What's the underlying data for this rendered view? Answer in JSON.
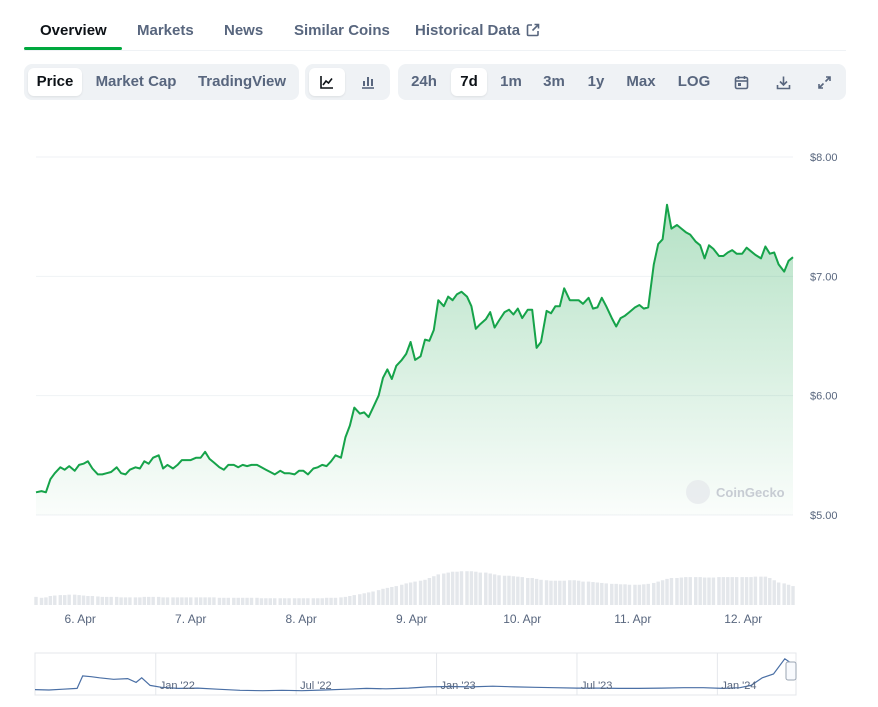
{
  "tabs": [
    {
      "label": "Overview",
      "active": true
    },
    {
      "label": "Markets"
    },
    {
      "label": "News"
    },
    {
      "label": "Similar Coins"
    },
    {
      "label": "Historical Data"
    }
  ],
  "toolbar": {
    "metric_buttons": [
      {
        "label": "Price",
        "active": true
      },
      {
        "label": "Market Cap"
      },
      {
        "label": "TradingView"
      }
    ],
    "chart_type_icons": [
      "line-chart-icon",
      "candlestick-chart-icon"
    ],
    "range_buttons": [
      {
        "label": "24h"
      },
      {
        "label": "7d",
        "active": true
      },
      {
        "label": "1m"
      },
      {
        "label": "3m"
      },
      {
        "label": "1y"
      },
      {
        "label": "Max"
      },
      {
        "label": "LOG"
      }
    ],
    "action_icons": [
      "calendar-icon",
      "download-icon",
      "fullscreen-icon"
    ]
  },
  "watermark": "CoinGecko",
  "colors": {
    "line": "#16a34a",
    "fill_top": "#b9e8c6",
    "volume": "#e4e7eb",
    "navigator_line": "#4a6fa5"
  },
  "chart_data": {
    "type": "line",
    "ylim": [
      5.0,
      8.0
    ],
    "yticks": [
      "$8.00",
      "$7.00",
      "$6.00",
      "$5.00"
    ],
    "ytick_values": [
      8,
      7,
      6,
      5
    ],
    "xlim": [
      5.6,
      12.45
    ],
    "xticks": [
      "6. Apr",
      "7. Apr",
      "8. Apr",
      "9. Apr",
      "10. Apr",
      "11. Apr",
      "12. Apr"
    ],
    "xtick_values": [
      6,
      7,
      8,
      9,
      10,
      11,
      12
    ],
    "x": [
      5.6,
      5.65,
      5.69,
      5.73,
      5.77,
      5.82,
      5.86,
      5.9,
      5.95,
      5.99,
      6.03,
      6.07,
      6.11,
      6.16,
      6.2,
      6.24,
      6.28,
      6.33,
      6.37,
      6.41,
      6.45,
      6.5,
      6.54,
      6.58,
      6.62,
      6.66,
      6.71,
      6.75,
      6.79,
      6.84,
      6.88,
      6.92,
      6.96,
      7.0,
      7.05,
      7.09,
      7.13,
      7.17,
      7.21,
      7.26,
      7.3,
      7.34,
      7.39,
      7.43,
      7.47,
      7.51,
      7.55,
      7.6,
      7.64,
      7.68,
      7.72,
      7.76,
      7.81,
      7.85,
      7.89,
      7.94,
      7.98,
      8.02,
      8.06,
      8.11,
      8.15,
      8.19,
      8.23,
      8.27,
      8.31,
      8.36,
      8.4,
      8.44,
      8.48,
      8.53,
      8.57,
      8.61,
      8.65,
      8.7,
      8.74,
      8.78,
      8.82,
      8.86,
      8.91,
      8.95,
      8.99,
      9.03,
      9.08,
      9.12,
      9.16,
      9.2,
      9.24,
      9.29,
      9.33,
      9.37,
      9.41,
      9.45,
      9.5,
      9.54,
      9.58,
      9.62,
      9.67,
      9.71,
      9.75,
      9.79,
      9.84,
      9.88,
      9.92,
      9.96,
      10.0,
      10.05,
      10.09,
      10.13,
      10.17,
      10.22,
      10.26,
      10.3,
      10.34,
      10.38,
      10.43,
      10.47,
      10.51,
      10.55,
      10.6,
      10.64,
      10.68,
      10.72,
      10.76,
      10.81,
      10.85,
      10.89,
      10.93,
      10.97,
      11.02,
      11.06,
      11.1,
      11.14,
      11.19,
      11.23,
      11.27,
      11.31,
      11.35,
      11.4,
      11.44,
      11.48,
      11.52,
      11.57,
      11.61,
      11.65,
      11.69,
      11.73,
      11.78,
      11.82,
      11.86,
      11.9,
      11.94,
      11.99,
      12.03,
      12.07,
      12.11,
      12.16,
      12.2,
      12.24,
      12.28,
      12.32,
      12.37,
      12.41,
      12.45
    ],
    "y": [
      5.19,
      5.2,
      5.19,
      5.3,
      5.35,
      5.4,
      5.38,
      5.41,
      5.37,
      5.42,
      5.43,
      5.45,
      5.39,
      5.34,
      5.34,
      5.35,
      5.36,
      5.4,
      5.35,
      5.34,
      5.38,
      5.4,
      5.39,
      5.45,
      5.43,
      5.48,
      5.5,
      5.39,
      5.42,
      5.39,
      5.42,
      5.46,
      5.46,
      5.46,
      5.48,
      5.48,
      5.53,
      5.47,
      5.44,
      5.4,
      5.38,
      5.42,
      5.42,
      5.4,
      5.42,
      5.41,
      5.42,
      5.42,
      5.4,
      5.38,
      5.36,
      5.34,
      5.37,
      5.35,
      5.35,
      5.34,
      5.37,
      5.37,
      5.34,
      5.39,
      5.4,
      5.42,
      5.41,
      5.45,
      5.5,
      5.48,
      5.65,
      5.75,
      5.9,
      5.85,
      5.86,
      5.82,
      5.9,
      6.0,
      6.15,
      6.22,
      6.14,
      6.25,
      6.3,
      6.35,
      6.45,
      6.3,
      6.33,
      6.47,
      6.46,
      6.55,
      6.8,
      6.75,
      6.83,
      6.8,
      6.85,
      6.87,
      6.83,
      6.75,
      6.56,
      6.6,
      6.64,
      6.7,
      6.57,
      6.63,
      6.7,
      6.72,
      6.68,
      6.73,
      6.65,
      6.72,
      6.72,
      6.4,
      6.45,
      6.71,
      6.69,
      6.75,
      6.75,
      6.9,
      6.8,
      6.8,
      6.8,
      6.77,
      6.82,
      6.73,
      6.74,
      6.82,
      6.75,
      6.65,
      6.58,
      6.65,
      6.67,
      6.7,
      6.74,
      6.76,
      6.73,
      6.74,
      7.1,
      7.27,
      7.31,
      7.6,
      7.4,
      7.43,
      7.4,
      7.37,
      7.35,
      7.29,
      7.26,
      7.15,
      7.26,
      7.23,
      7.17,
      7.17,
      7.2,
      7.22,
      7.19,
      7.19,
      7.24,
      7.21,
      7.18,
      7.15,
      7.25,
      7.19,
      7.2,
      7.1,
      7.04,
      7.13,
      7.16
    ],
    "volume_x": [
      5.6,
      5.65,
      5.69,
      5.73,
      5.77,
      5.82,
      5.86,
      5.9,
      5.95,
      5.99,
      6.03,
      6.07,
      6.11,
      6.16,
      6.2,
      6.24,
      6.28,
      6.33,
      6.37,
      6.41,
      6.45,
      6.5,
      6.54,
      6.58,
      6.62,
      6.66,
      6.71,
      6.75,
      6.79,
      6.84,
      6.88,
      6.92,
      6.96,
      7.0,
      7.05,
      7.09,
      7.13,
      7.17,
      7.21,
      7.26,
      7.3,
      7.34,
      7.39,
      7.43,
      7.47,
      7.51,
      7.55,
      7.6,
      7.64,
      7.68,
      7.72,
      7.76,
      7.81,
      7.85,
      7.89,
      7.94,
      7.98,
      8.02,
      8.06,
      8.11,
      8.15,
      8.19,
      8.23,
      8.27,
      8.31,
      8.36,
      8.4,
      8.44,
      8.48,
      8.53,
      8.57,
      8.61,
      8.65,
      8.7,
      8.74,
      8.78,
      8.82,
      8.86,
      8.91,
      8.95,
      8.99,
      9.03,
      9.08,
      9.12,
      9.16,
      9.2,
      9.24,
      9.29,
      9.33,
      9.37,
      9.41,
      9.45,
      9.5,
      9.54,
      9.58,
      9.62,
      9.67,
      9.71,
      9.75,
      9.79,
      9.84,
      9.88,
      9.92,
      9.96,
      10.0,
      10.05,
      10.09,
      10.13,
      10.17,
      10.22,
      10.26,
      10.3,
      10.34,
      10.38,
      10.43,
      10.47,
      10.51,
      10.55,
      10.6,
      10.64,
      10.68,
      10.72,
      10.76,
      10.81,
      10.85,
      10.89,
      10.93,
      10.97,
      11.02,
      11.06,
      11.1,
      11.14,
      11.19,
      11.23,
      11.27,
      11.31,
      11.35,
      11.4,
      11.44,
      11.48,
      11.52,
      11.57,
      11.61,
      11.65,
      11.69,
      11.73,
      11.78,
      11.82,
      11.86,
      11.9,
      11.94,
      11.99,
      12.03,
      12.07,
      12.11,
      12.16,
      12.2,
      12.24,
      12.28,
      12.32,
      12.37,
      12.41,
      12.45
    ],
    "volume": [
      0.18,
      0.16,
      0.17,
      0.2,
      0.21,
      0.22,
      0.22,
      0.23,
      0.23,
      0.22,
      0.21,
      0.2,
      0.2,
      0.19,
      0.18,
      0.18,
      0.18,
      0.18,
      0.17,
      0.17,
      0.17,
      0.17,
      0.17,
      0.18,
      0.18,
      0.18,
      0.18,
      0.17,
      0.17,
      0.17,
      0.17,
      0.17,
      0.17,
      0.17,
      0.17,
      0.17,
      0.17,
      0.17,
      0.17,
      0.16,
      0.16,
      0.16,
      0.16,
      0.16,
      0.16,
      0.16,
      0.16,
      0.16,
      0.15,
      0.15,
      0.15,
      0.15,
      0.15,
      0.15,
      0.15,
      0.15,
      0.15,
      0.15,
      0.15,
      0.15,
      0.15,
      0.15,
      0.16,
      0.16,
      0.16,
      0.17,
      0.18,
      0.2,
      0.22,
      0.24,
      0.26,
      0.28,
      0.3,
      0.33,
      0.36,
      0.38,
      0.4,
      0.42,
      0.45,
      0.48,
      0.5,
      0.52,
      0.54,
      0.56,
      0.6,
      0.64,
      0.68,
      0.7,
      0.72,
      0.74,
      0.74,
      0.75,
      0.75,
      0.75,
      0.74,
      0.72,
      0.72,
      0.7,
      0.68,
      0.66,
      0.65,
      0.65,
      0.64,
      0.63,
      0.62,
      0.6,
      0.6,
      0.58,
      0.56,
      0.55,
      0.54,
      0.54,
      0.54,
      0.54,
      0.55,
      0.55,
      0.54,
      0.52,
      0.52,
      0.51,
      0.5,
      0.49,
      0.48,
      0.47,
      0.47,
      0.46,
      0.46,
      0.45,
      0.45,
      0.45,
      0.46,
      0.47,
      0.49,
      0.52,
      0.55,
      0.58,
      0.6,
      0.6,
      0.61,
      0.62,
      0.62,
      0.62,
      0.62,
      0.61,
      0.61,
      0.61,
      0.62,
      0.62,
      0.62,
      0.62,
      0.62,
      0.62,
      0.62,
      0.62,
      0.63,
      0.63,
      0.63,
      0.6,
      0.55,
      0.5,
      0.48,
      0.45,
      0.42
    ],
    "navigator": {
      "xticks": [
        "Jan '22",
        "Jul '22",
        "Jan '23",
        "Jul '23",
        "Jan '24"
      ],
      "xtick_values": [
        2022.0,
        2022.5,
        2023.0,
        2023.5,
        2024.0
      ],
      "xlim": [
        2021.57,
        2024.28
      ],
      "x": [
        2021.57,
        2021.62,
        2021.67,
        2021.72,
        2021.74,
        2021.77,
        2021.8,
        2021.85,
        2021.9,
        2021.93,
        2021.95,
        2021.98,
        2022.02,
        2022.08,
        2022.15,
        2022.22,
        2022.3,
        2022.38,
        2022.45,
        2022.52,
        2022.6,
        2022.68,
        2022.75,
        2022.82,
        2022.9,
        2022.97,
        2023.05,
        2023.12,
        2023.2,
        2023.28,
        2023.35,
        2023.42,
        2023.5,
        2023.58,
        2023.65,
        2023.72,
        2023.8,
        2023.88,
        2023.95,
        2024.02,
        2024.08,
        2024.12,
        2024.16,
        2024.2,
        2024.24,
        2024.27
      ],
      "y": [
        0.09,
        0.08,
        0.1,
        0.12,
        0.45,
        0.43,
        0.4,
        0.36,
        0.38,
        0.28,
        0.4,
        0.2,
        0.15,
        0.12,
        0.13,
        0.1,
        0.07,
        0.06,
        0.07,
        0.06,
        0.08,
        0.1,
        0.12,
        0.11,
        0.13,
        0.16,
        0.17,
        0.16,
        0.18,
        0.16,
        0.15,
        0.14,
        0.13,
        0.13,
        0.12,
        0.12,
        0.13,
        0.14,
        0.14,
        0.12,
        0.14,
        0.2,
        0.4,
        0.5,
        0.9,
        0.75
      ]
    }
  }
}
